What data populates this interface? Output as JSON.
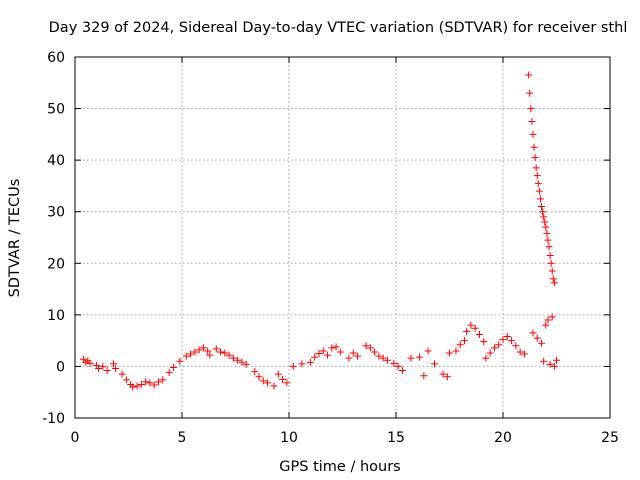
{
  "chart_data": {
    "type": "scatter",
    "title": "Day 329 of 2024, Sidereal Day-to-day VTEC variation (SDTVAR) for receiver sthl",
    "xlabel": "GPS time / hours",
    "ylabel": "SDTVAR / TECUs",
    "xlim": [
      0,
      25
    ],
    "ylim": [
      -10,
      60
    ],
    "xticks": [
      "0",
      "5",
      "10",
      "15",
      "20",
      "25"
    ],
    "yticks": [
      "-10",
      "0",
      "10",
      "20",
      "30",
      "40",
      "50",
      "60"
    ],
    "grid": true,
    "marker": "+",
    "color": "#ff0000",
    "series": [
      {
        "name": "SDTVAR",
        "points": [
          [
            0.4,
            1.4
          ],
          [
            0.5,
            0.8
          ],
          [
            0.6,
            1.1
          ],
          [
            0.7,
            0.6
          ],
          [
            1.0,
            0.2
          ],
          [
            1.1,
            -0.4
          ],
          [
            1.3,
            0.0
          ],
          [
            1.5,
            -0.8
          ],
          [
            1.8,
            0.5
          ],
          [
            1.9,
            -0.4
          ],
          [
            2.2,
            -1.5
          ],
          [
            2.4,
            -2.6
          ],
          [
            2.6,
            -3.5
          ],
          [
            2.7,
            -4.0
          ],
          [
            2.9,
            -3.8
          ],
          [
            3.1,
            -3.5
          ],
          [
            3.3,
            -3.0
          ],
          [
            3.5,
            -3.2
          ],
          [
            3.7,
            -3.6
          ],
          [
            3.9,
            -3.0
          ],
          [
            4.1,
            -2.6
          ],
          [
            4.4,
            -1.2
          ],
          [
            4.6,
            -0.2
          ],
          [
            4.9,
            1.0
          ],
          [
            5.2,
            2.0
          ],
          [
            5.4,
            2.4
          ],
          [
            5.6,
            2.8
          ],
          [
            5.8,
            3.2
          ],
          [
            6.0,
            3.6
          ],
          [
            6.2,
            3.0
          ],
          [
            6.3,
            2.2
          ],
          [
            6.6,
            3.4
          ],
          [
            6.8,
            2.8
          ],
          [
            7.0,
            2.6
          ],
          [
            7.2,
            2.2
          ],
          [
            7.4,
            1.6
          ],
          [
            7.6,
            1.2
          ],
          [
            7.8,
            0.8
          ],
          [
            8.0,
            0.4
          ],
          [
            8.4,
            -1.0
          ],
          [
            8.6,
            -2.0
          ],
          [
            8.8,
            -2.8
          ],
          [
            9.0,
            -3.2
          ],
          [
            9.3,
            -3.8
          ],
          [
            9.5,
            -1.5
          ],
          [
            9.7,
            -2.5
          ],
          [
            9.9,
            -3.2
          ],
          [
            10.2,
            0.0
          ],
          [
            10.6,
            0.5
          ],
          [
            11.0,
            0.8
          ],
          [
            11.2,
            1.8
          ],
          [
            11.4,
            2.5
          ],
          [
            11.6,
            3.0
          ],
          [
            11.8,
            2.2
          ],
          [
            12.0,
            3.6
          ],
          [
            12.2,
            3.8
          ],
          [
            12.4,
            2.8
          ],
          [
            12.8,
            1.6
          ],
          [
            13.0,
            2.6
          ],
          [
            13.2,
            2.0
          ],
          [
            13.6,
            4.0
          ],
          [
            13.8,
            3.6
          ],
          [
            14.0,
            2.8
          ],
          [
            14.2,
            2.0
          ],
          [
            14.4,
            1.6
          ],
          [
            14.6,
            1.2
          ],
          [
            14.9,
            0.6
          ],
          [
            15.1,
            0.0
          ],
          [
            15.3,
            -0.8
          ],
          [
            15.7,
            1.6
          ],
          [
            16.1,
            1.8
          ],
          [
            16.3,
            -1.8
          ],
          [
            16.5,
            3.0
          ],
          [
            16.8,
            0.5
          ],
          [
            17.2,
            -1.5
          ],
          [
            17.4,
            -2.0
          ],
          [
            17.5,
            2.6
          ],
          [
            17.8,
            3.0
          ],
          [
            18.0,
            4.2
          ],
          [
            18.2,
            5.0
          ],
          [
            18.3,
            6.8
          ],
          [
            18.5,
            8.0
          ],
          [
            18.7,
            7.4
          ],
          [
            18.9,
            6.2
          ],
          [
            19.1,
            4.8
          ],
          [
            19.2,
            1.6
          ],
          [
            19.4,
            2.6
          ],
          [
            19.6,
            3.6
          ],
          [
            19.8,
            4.2
          ],
          [
            20.0,
            5.2
          ],
          [
            20.2,
            5.8
          ],
          [
            20.4,
            5.0
          ],
          [
            20.6,
            4.0
          ],
          [
            20.8,
            2.8
          ],
          [
            21.0,
            2.4
          ],
          [
            21.2,
            56.5
          ],
          [
            21.25,
            53.0
          ],
          [
            21.3,
            50.0
          ],
          [
            21.35,
            47.5
          ],
          [
            21.4,
            45.0
          ],
          [
            21.45,
            42.5
          ],
          [
            21.5,
            40.5
          ],
          [
            21.55,
            38.5
          ],
          [
            21.6,
            37.0
          ],
          [
            21.65,
            35.5
          ],
          [
            21.7,
            34.0
          ],
          [
            21.75,
            32.5
          ],
          [
            21.8,
            31.0
          ],
          [
            21.85,
            30.0
          ],
          [
            21.9,
            29.0
          ],
          [
            21.95,
            28.0
          ],
          [
            22.0,
            27.0
          ],
          [
            22.05,
            25.8
          ],
          [
            22.1,
            24.5
          ],
          [
            22.15,
            23.2
          ],
          [
            22.2,
            21.5
          ],
          [
            22.25,
            20.0
          ],
          [
            22.3,
            18.5
          ],
          [
            22.35,
            17.0
          ],
          [
            22.4,
            16.2
          ],
          [
            21.4,
            6.5
          ],
          [
            21.6,
            5.5
          ],
          [
            21.8,
            4.5
          ],
          [
            22.0,
            8.0
          ],
          [
            22.1,
            9.0
          ],
          [
            22.3,
            9.6
          ],
          [
            21.9,
            1.0
          ],
          [
            22.2,
            0.4
          ],
          [
            22.4,
            0.0
          ],
          [
            22.5,
            1.2
          ]
        ]
      }
    ]
  }
}
